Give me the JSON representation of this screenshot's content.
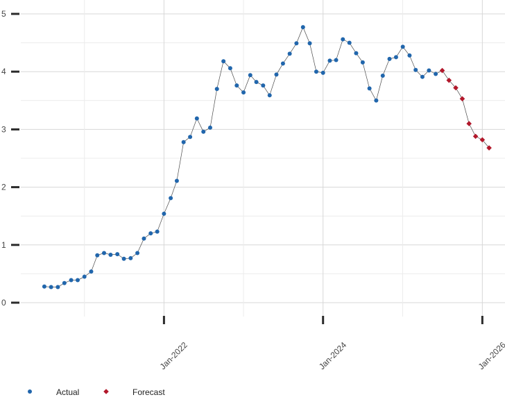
{
  "chart_data": {
    "type": "line",
    "title": "",
    "xlabel": "",
    "ylabel": "",
    "grid": true,
    "legend_placement": "bottom-left",
    "ylim": [
      0,
      5
    ],
    "yticks": [
      "0",
      "1",
      "2",
      "3",
      "4",
      "5"
    ],
    "xlim": [
      "2020-03-15",
      "2026-04-15"
    ],
    "xticks": [
      {
        "date": "2022-01-01",
        "label": "Jan-2022"
      },
      {
        "date": "2024-01-01",
        "label": "Jan-2024"
      },
      {
        "date": "2026-01-01",
        "label": "Jan-2026"
      }
    ],
    "series": [
      {
        "name": "Actual",
        "color": "#2166ac",
        "marker": "circle",
        "points": [
          [
            "2020-07-01",
            0.28
          ],
          [
            "2020-08-01",
            0.27
          ],
          [
            "2020-09-01",
            0.27
          ],
          [
            "2020-10-01",
            0.34
          ],
          [
            "2020-11-01",
            0.39
          ],
          [
            "2020-12-01",
            0.39
          ],
          [
            "2021-01-01",
            0.45
          ],
          [
            "2021-02-01",
            0.54
          ],
          [
            "2021-03-01",
            0.82
          ],
          [
            "2021-04-01",
            0.86
          ],
          [
            "2021-05-01",
            0.83
          ],
          [
            "2021-06-01",
            0.84
          ],
          [
            "2021-07-01",
            0.76
          ],
          [
            "2021-08-01",
            0.77
          ],
          [
            "2021-09-01",
            0.86
          ],
          [
            "2021-10-01",
            1.11
          ],
          [
            "2021-11-01",
            1.2
          ],
          [
            "2021-12-01",
            1.23
          ],
          [
            "2022-01-01",
            1.54
          ],
          [
            "2022-02-01",
            1.81
          ],
          [
            "2022-03-01",
            2.11
          ],
          [
            "2022-04-01",
            2.78
          ],
          [
            "2022-05-01",
            2.87
          ],
          [
            "2022-06-01",
            3.19
          ],
          [
            "2022-07-01",
            2.96
          ],
          [
            "2022-08-01",
            3.03
          ],
          [
            "2022-09-01",
            3.7
          ],
          [
            "2022-10-01",
            4.18
          ],
          [
            "2022-11-01",
            4.06
          ],
          [
            "2022-12-01",
            3.76
          ],
          [
            "2023-01-01",
            3.64
          ],
          [
            "2023-02-01",
            3.94
          ],
          [
            "2023-03-01",
            3.82
          ],
          [
            "2023-04-01",
            3.76
          ],
          [
            "2023-05-01",
            3.59
          ],
          [
            "2023-06-01",
            3.95
          ],
          [
            "2023-07-01",
            4.14
          ],
          [
            "2023-08-01",
            4.31
          ],
          [
            "2023-09-01",
            4.49
          ],
          [
            "2023-10-01",
            4.77
          ],
          [
            "2023-11-01",
            4.49
          ],
          [
            "2023-12-01",
            4.0
          ],
          [
            "2024-01-01",
            3.98
          ],
          [
            "2024-02-01",
            4.19
          ],
          [
            "2024-03-01",
            4.2
          ],
          [
            "2024-04-01",
            4.56
          ],
          [
            "2024-05-01",
            4.5
          ],
          [
            "2024-06-01",
            4.32
          ],
          [
            "2024-07-01",
            4.16
          ],
          [
            "2024-08-01",
            3.71
          ],
          [
            "2024-09-01",
            3.5
          ],
          [
            "2024-10-01",
            3.93
          ],
          [
            "2024-11-01",
            4.22
          ],
          [
            "2024-12-01",
            4.25
          ],
          [
            "2025-01-01",
            4.43
          ],
          [
            "2025-02-01",
            4.28
          ],
          [
            "2025-03-01",
            4.03
          ],
          [
            "2025-04-01",
            3.91
          ],
          [
            "2025-05-01",
            4.02
          ],
          [
            "2025-06-01",
            3.96
          ]
        ]
      },
      {
        "name": "Forecast",
        "color": "#b2182b",
        "marker": "diamond",
        "points": [
          [
            "2025-07-01",
            4.02
          ],
          [
            "2025-08-01",
            3.85
          ],
          [
            "2025-09-01",
            3.72
          ],
          [
            "2025-10-01",
            3.53
          ],
          [
            "2025-11-01",
            3.1
          ],
          [
            "2025-12-01",
            2.88
          ],
          [
            "2026-01-01",
            2.82
          ],
          [
            "2026-02-01",
            2.68
          ]
        ]
      }
    ]
  }
}
